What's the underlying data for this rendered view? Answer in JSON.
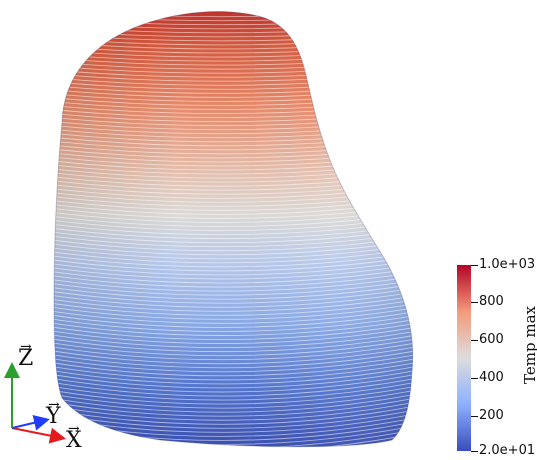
{
  "scalar_bar": {
    "title": "Temp max",
    "max_label": "1.0e+03",
    "min_label": "2.0e+01",
    "ticks": [
      "800",
      "600",
      "400",
      "200"
    ],
    "range": [
      20,
      1000
    ],
    "tick_values": [
      800,
      600,
      400,
      200
    ],
    "colormap": [
      "#3b4cc0",
      "#8db0fe",
      "#dddddd",
      "#f49a7b",
      "#b40426"
    ]
  },
  "axes": {
    "z_label": "Z",
    "y_label": "Y",
    "x_label": "X",
    "x_color": "#e41a1c",
    "y_color": "#1f3cff",
    "z_color": "#2ca02c"
  },
  "mesh": {
    "field": "Temp max",
    "contour_color": "#ffffff"
  }
}
